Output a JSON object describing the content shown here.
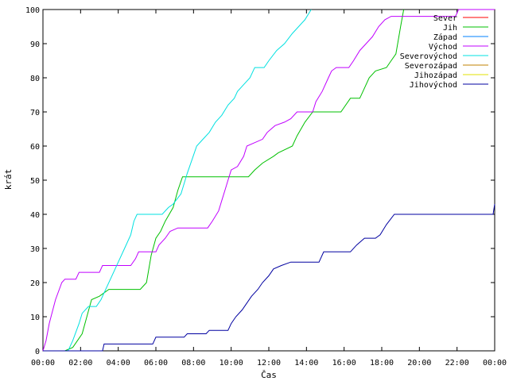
{
  "chart_data": {
    "type": "line",
    "xlabel": "Čas",
    "ylabel": "krát",
    "ylim": [
      0,
      100
    ],
    "xlim": [
      "00:00",
      "24:00"
    ],
    "x_ticks": [
      "00:00",
      "02:00",
      "04:00",
      "06:00",
      "08:00",
      "10:00",
      "12:00",
      "14:00",
      "16:00",
      "18:00",
      "20:00",
      "22:00",
      "00:00"
    ],
    "y_ticks": [
      0,
      10,
      20,
      30,
      40,
      50,
      60,
      70,
      80,
      90,
      100
    ],
    "grid": false,
    "legend_position": "top-right",
    "series": [
      {
        "name": "Sever",
        "color": "#ff0000",
        "points": []
      },
      {
        "name": "Jih",
        "color": "#00c000",
        "points": [
          [
            "00:00",
            0
          ],
          [
            "01:10",
            0
          ],
          [
            "01:35",
            1
          ],
          [
            "02:05",
            5
          ],
          [
            "02:20",
            10
          ],
          [
            "02:35",
            15
          ],
          [
            "03:00",
            16
          ],
          [
            "03:30",
            18
          ],
          [
            "05:10",
            18
          ],
          [
            "05:30",
            20
          ],
          [
            "05:45",
            28
          ],
          [
            "06:00",
            33
          ],
          [
            "06:15",
            35
          ],
          [
            "06:30",
            38
          ],
          [
            "06:55",
            42
          ],
          [
            "07:10",
            47
          ],
          [
            "07:25",
            51
          ],
          [
            "10:55",
            51
          ],
          [
            "11:15",
            53
          ],
          [
            "11:40",
            55
          ],
          [
            "12:15",
            57
          ],
          [
            "12:30",
            58
          ],
          [
            "13:15",
            60
          ],
          [
            "13:30",
            63
          ],
          [
            "13:55",
            67
          ],
          [
            "14:20",
            70
          ],
          [
            "15:50",
            70
          ],
          [
            "16:20",
            74
          ],
          [
            "16:50",
            74
          ],
          [
            "17:05",
            77
          ],
          [
            "17:20",
            80
          ],
          [
            "17:40",
            82
          ],
          [
            "18:15",
            83
          ],
          [
            "18:30",
            85
          ],
          [
            "18:45",
            87
          ],
          [
            "19:00",
            95
          ],
          [
            "19:10",
            100
          ]
        ]
      },
      {
        "name": "Západ",
        "color": "#0080ff",
        "points": []
      },
      {
        "name": "Východ",
        "color": "#c000ff",
        "points": [
          [
            "00:00",
            0
          ],
          [
            "00:10",
            3
          ],
          [
            "00:20",
            8
          ],
          [
            "00:40",
            15
          ],
          [
            "01:00",
            20
          ],
          [
            "01:10",
            21
          ],
          [
            "01:45",
            21
          ],
          [
            "01:55",
            23
          ],
          [
            "03:00",
            23
          ],
          [
            "03:10",
            25
          ],
          [
            "04:40",
            25
          ],
          [
            "04:55",
            27
          ],
          [
            "05:05",
            29
          ],
          [
            "06:00",
            29
          ],
          [
            "06:10",
            31
          ],
          [
            "06:30",
            33
          ],
          [
            "06:45",
            35
          ],
          [
            "07:10",
            36
          ],
          [
            "08:45",
            36
          ],
          [
            "09:00",
            38
          ],
          [
            "09:20",
            41
          ],
          [
            "09:30",
            44
          ],
          [
            "09:40",
            47
          ],
          [
            "09:50",
            50
          ],
          [
            "10:00",
            53
          ],
          [
            "10:20",
            54
          ],
          [
            "10:40",
            57
          ],
          [
            "10:50",
            60
          ],
          [
            "11:15",
            61
          ],
          [
            "11:40",
            62
          ],
          [
            "11:55",
            64
          ],
          [
            "12:20",
            66
          ],
          [
            "12:50",
            67
          ],
          [
            "13:10",
            68
          ],
          [
            "13:30",
            70
          ],
          [
            "14:20",
            70
          ],
          [
            "14:30",
            73
          ],
          [
            "14:50",
            76
          ],
          [
            "15:10",
            80
          ],
          [
            "15:20",
            82
          ],
          [
            "15:35",
            83
          ],
          [
            "16:15",
            83
          ],
          [
            "16:30",
            85
          ],
          [
            "16:50",
            88
          ],
          [
            "17:10",
            90
          ],
          [
            "17:30",
            92
          ],
          [
            "17:50",
            95
          ],
          [
            "18:10",
            97
          ],
          [
            "18:30",
            98
          ],
          [
            "21:55",
            98
          ],
          [
            "22:05",
            100
          ],
          [
            "24:00",
            100
          ]
        ]
      },
      {
        "name": "Severovýchod",
        "color": "#00e0e0",
        "points": [
          [
            "00:00",
            0
          ],
          [
            "01:20",
            0
          ],
          [
            "01:35",
            3
          ],
          [
            "01:55",
            8
          ],
          [
            "02:05",
            11
          ],
          [
            "02:25",
            13
          ],
          [
            "02:50",
            13
          ],
          [
            "03:05",
            15
          ],
          [
            "03:20",
            18
          ],
          [
            "03:40",
            22
          ],
          [
            "04:00",
            26
          ],
          [
            "04:20",
            30
          ],
          [
            "04:40",
            34
          ],
          [
            "04:50",
            38
          ],
          [
            "05:00",
            40
          ],
          [
            "06:20",
            40
          ],
          [
            "06:40",
            42
          ],
          [
            "06:55",
            43
          ],
          [
            "07:20",
            46
          ],
          [
            "07:40",
            52
          ],
          [
            "07:55",
            56
          ],
          [
            "08:10",
            60
          ],
          [
            "08:30",
            62
          ],
          [
            "08:50",
            64
          ],
          [
            "09:10",
            67
          ],
          [
            "09:30",
            69
          ],
          [
            "09:50",
            72
          ],
          [
            "10:10",
            74
          ],
          [
            "10:20",
            76
          ],
          [
            "10:40",
            78
          ],
          [
            "11:00",
            80
          ],
          [
            "11:15",
            83
          ],
          [
            "11:45",
            83
          ],
          [
            "12:00",
            85
          ],
          [
            "12:25",
            88
          ],
          [
            "12:50",
            90
          ],
          [
            "13:15",
            93
          ],
          [
            "13:35",
            95
          ],
          [
            "13:55",
            97
          ],
          [
            "14:15",
            100
          ]
        ]
      },
      {
        "name": "Severozápad",
        "color": "#c08000",
        "points": []
      },
      {
        "name": "Jihozápad",
        "color": "#e0e000",
        "points": []
      },
      {
        "name": "Jihovýchod",
        "color": "#0000a0",
        "points": [
          [
            "00:00",
            0
          ],
          [
            "03:10",
            0
          ],
          [
            "03:15",
            2
          ],
          [
            "05:50",
            2
          ],
          [
            "06:00",
            4
          ],
          [
            "07:30",
            4
          ],
          [
            "07:40",
            5
          ],
          [
            "08:40",
            5
          ],
          [
            "08:50",
            6
          ],
          [
            "09:50",
            6
          ],
          [
            "10:00",
            8
          ],
          [
            "10:15",
            10
          ],
          [
            "10:35",
            12
          ],
          [
            "10:50",
            14
          ],
          [
            "11:05",
            16
          ],
          [
            "11:25",
            18
          ],
          [
            "11:40",
            20
          ],
          [
            "12:00",
            22
          ],
          [
            "12:15",
            24
          ],
          [
            "12:40",
            25
          ],
          [
            "13:10",
            26
          ],
          [
            "14:40",
            26
          ],
          [
            "14:55",
            29
          ],
          [
            "16:20",
            29
          ],
          [
            "16:40",
            31
          ],
          [
            "17:05",
            33
          ],
          [
            "17:40",
            33
          ],
          [
            "17:55",
            34
          ],
          [
            "18:15",
            37
          ],
          [
            "18:40",
            40
          ],
          [
            "23:55",
            40
          ],
          [
            "24:00",
            43
          ]
        ]
      }
    ]
  }
}
